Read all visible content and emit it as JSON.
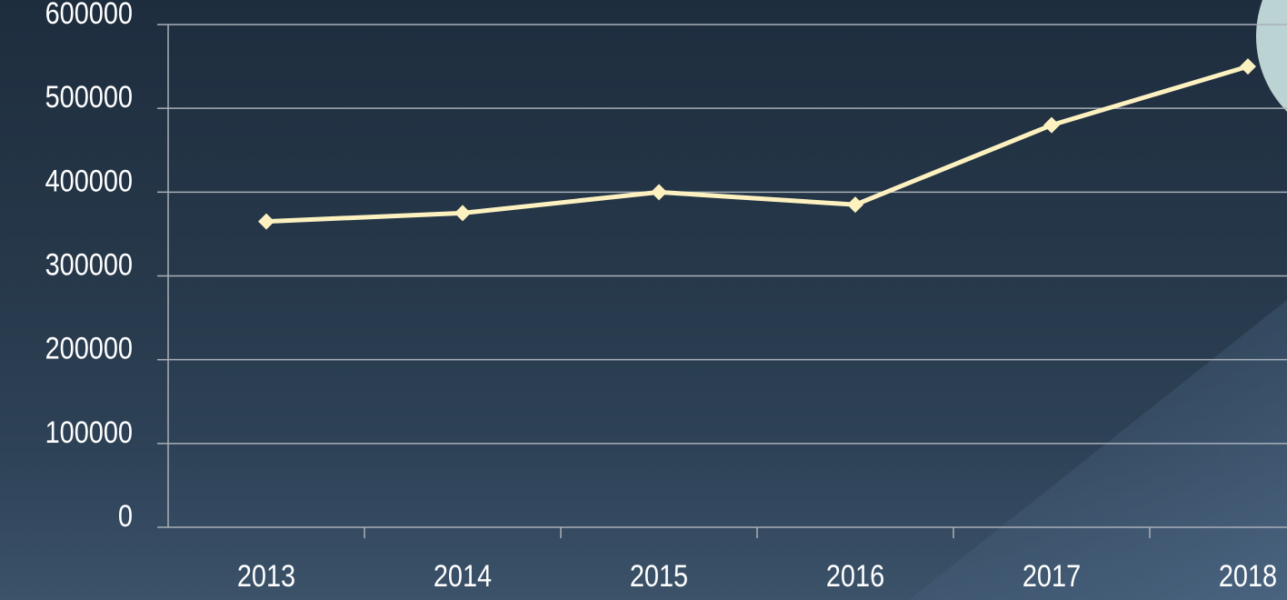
{
  "chart_data": {
    "type": "line",
    "categories": [
      "2013",
      "2014",
      "2015",
      "2016",
      "2017",
      "2018"
    ],
    "values": [
      365000,
      375000,
      400000,
      385000,
      480000,
      550000
    ],
    "color": "#fdf1c0",
    "ylim": [
      0,
      600000
    ],
    "yticks": [
      0,
      100000,
      200000,
      300000,
      400000,
      500000,
      600000
    ],
    "grid": true
  }
}
